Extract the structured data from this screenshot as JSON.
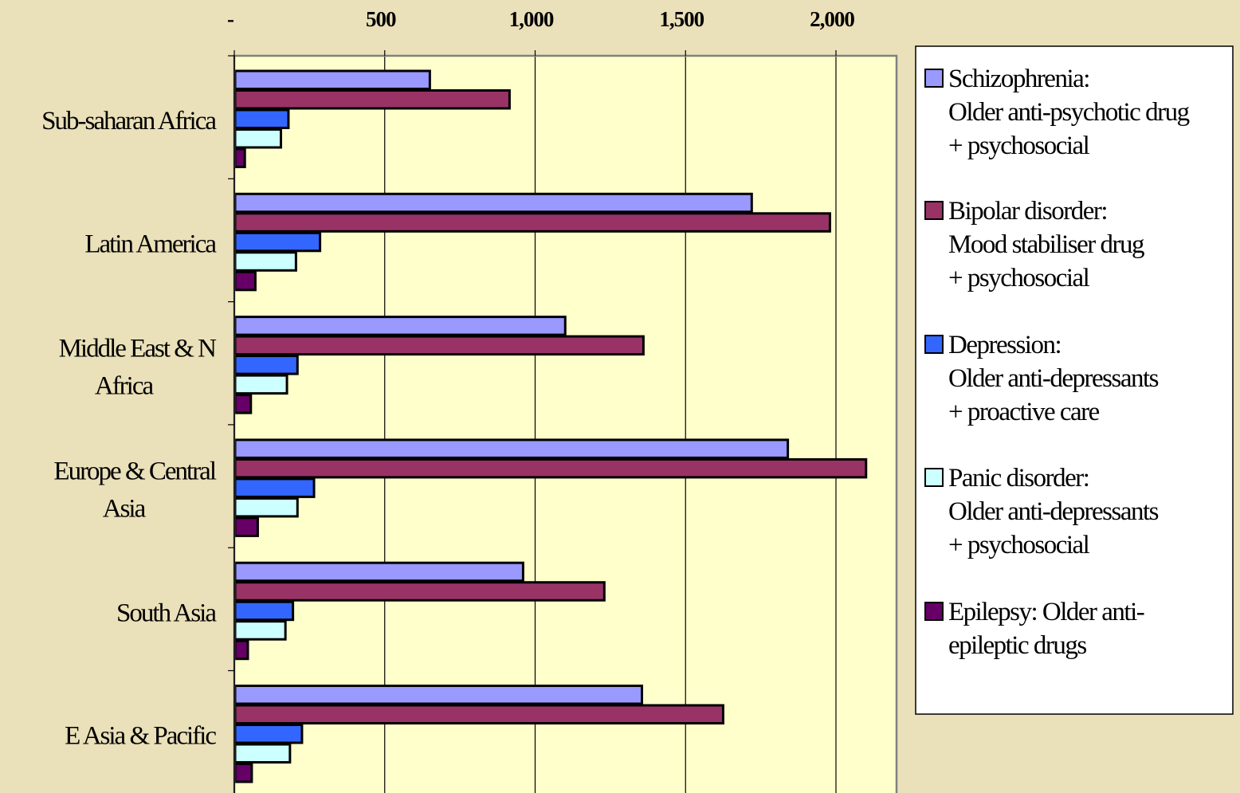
{
  "colors": {
    "page_background": "#EAE0B9",
    "plot_background": "#FFFFCC",
    "legend_background": "#FFFFFF",
    "gridline": "#000000",
    "bar_outline": "#000000"
  },
  "chart_data": {
    "type": "bar",
    "orientation": "horizontal",
    "x_axis_position": "top",
    "xlim": [
      0,
      2200
    ],
    "x_ticks": [
      {
        "value": 0,
        "label": "-"
      },
      {
        "value": 500,
        "label": "500"
      },
      {
        "value": 1000,
        "label": "1,000"
      },
      {
        "value": 1500,
        "label": "1,500"
      },
      {
        "value": 2000,
        "label": "2,000"
      }
    ],
    "grid": "vertical",
    "legend_position": "right",
    "title": "",
    "xlabel": "",
    "ylabel": "",
    "categories": [
      [
        "Sub-saharan Africa"
      ],
      [
        "Latin America"
      ],
      [
        "Middle East & N",
        "Africa"
      ],
      [
        "Europe & Central",
        "Asia"
      ],
      [
        "South Asia"
      ],
      [
        "E Asia & Pacific"
      ]
    ],
    "series": [
      {
        "name_lines": [
          "Schizophrenia:",
          "Older anti-psychotic drug",
          "+ psychosocial"
        ],
        "color": "#9999FF",
        "values": [
          650,
          1720,
          1100,
          1840,
          960,
          1355
        ]
      },
      {
        "name_lines": [
          "Bipolar disorder:",
          "Mood stabiliser drug",
          "+ psychosocial"
        ],
        "color": "#993366",
        "values": [
          915,
          1980,
          1360,
          2100,
          1230,
          1625
        ]
      },
      {
        "name_lines": [
          "Depression:",
          "Older anti-depressants",
          "+ proactive care"
        ],
        "color": "#3366FF",
        "values": [
          180,
          285,
          210,
          265,
          195,
          225
        ]
      },
      {
        "name_lines": [
          "Panic disorder:",
          "Older anti-depressants",
          "+ psychosocial"
        ],
        "color": "#CCFFFF",
        "values": [
          155,
          205,
          175,
          210,
          170,
          185
        ]
      },
      {
        "name_lines": [
          "Epilepsy: Older anti-",
          "epileptic drugs"
        ],
        "color": "#660066",
        "values": [
          35,
          70,
          55,
          78,
          45,
          58
        ]
      }
    ]
  }
}
